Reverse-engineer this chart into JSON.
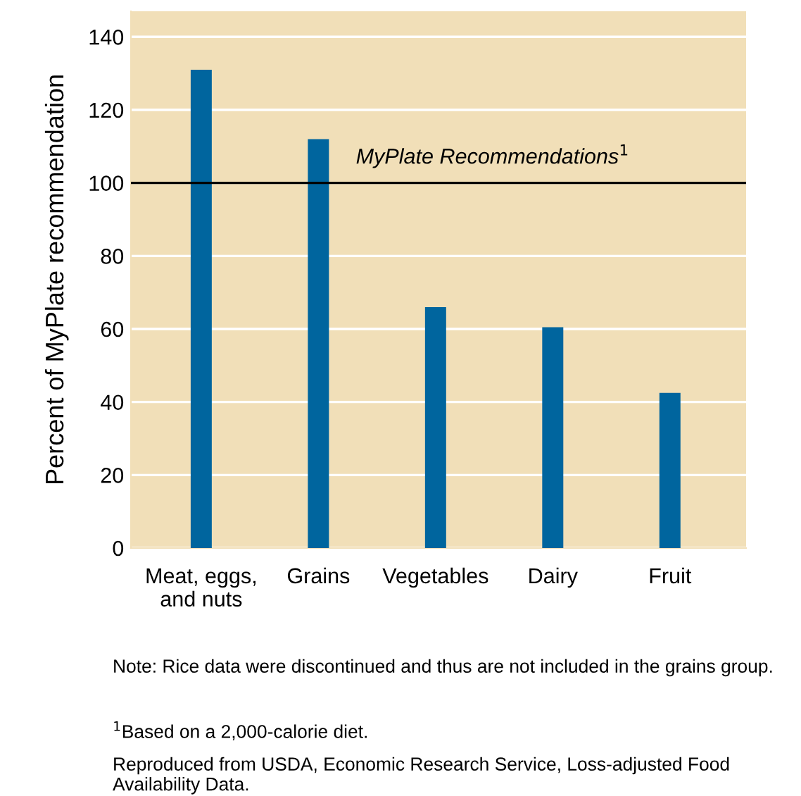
{
  "chart_data": {
    "type": "bar",
    "ylabel": "Percent of MyPlate recommendation",
    "categories": [
      "Meat, eggs,\nand nuts",
      "Grains",
      "Vegetables",
      "Dairy",
      "Fruit"
    ],
    "values": [
      131,
      112,
      66,
      60.5,
      42.5
    ],
    "color": "#00659e",
    "ylim": [
      0,
      147
    ],
    "yticks": [
      0,
      20,
      40,
      60,
      80,
      100,
      120,
      140
    ],
    "grid": "y",
    "ref_lines": [
      {
        "axis": "y",
        "value": 100,
        "label": "MyPlate Recommendations$^{1}$",
        "color": "#000000",
        "line_style": "solid"
      }
    ],
    "annotations": [
      "Note: Rice data were discontinued and thus are not included in the grains group.",
      "$^{1}$Based on a 2,000-calorie diet.",
      "Reproduced from USDA, Economic Research Service, Loss-adjusted Food Availability Data."
    ]
  }
}
